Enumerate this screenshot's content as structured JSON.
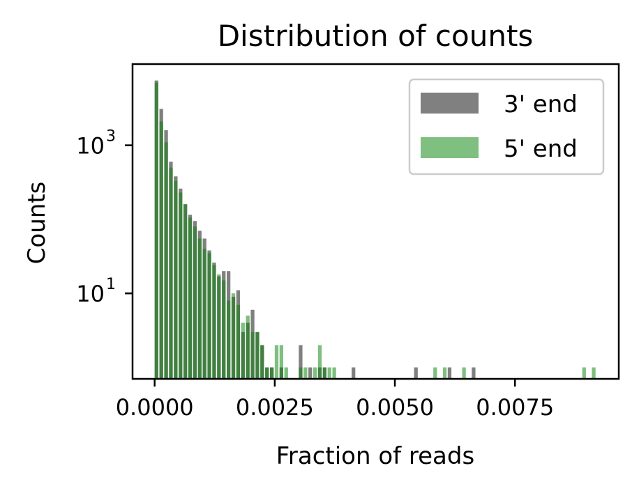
{
  "chart_data": {
    "type": "bar",
    "title": "Distribution of counts",
    "xlabel": "Fraction of reads",
    "ylabel": "Counts",
    "x_ticks": [
      {
        "value": 0.0,
        "label": "0.0000"
      },
      {
        "value": 0.0025,
        "label": "0.0025"
      },
      {
        "value": 0.005,
        "label": "0.0050"
      },
      {
        "value": 0.0075,
        "label": "0.0075"
      }
    ],
    "y_ticks": [
      {
        "value": 10,
        "base": "10",
        "exp": "1"
      },
      {
        "value": 1000,
        "base": "10",
        "exp": "3"
      }
    ],
    "xlim": [
      -0.00046,
      0.00966
    ],
    "ylim": [
      0.7,
      12500
    ],
    "y_scale": "log",
    "grid": false,
    "legend_position": "top-right",
    "bin_width": 7.64e-05,
    "series": [
      {
        "name": "3' end",
        "color": "#808080",
        "opacity": 1.0,
        "bins": [
          [
            0.0,
            7500
          ],
          [
            0.0001,
            3100
          ],
          [
            0.0002,
            1600
          ],
          [
            0.0003,
            600
          ],
          [
            0.0004,
            380
          ],
          [
            0.0005,
            260
          ],
          [
            0.0006,
            160
          ],
          [
            0.0007,
            115
          ],
          [
            0.0008,
            95
          ],
          [
            0.0009,
            70
          ],
          [
            0.001,
            55
          ],
          [
            0.0011,
            38
          ],
          [
            0.0012,
            26
          ],
          [
            0.0013,
            17
          ],
          [
            0.0014,
            20
          ],
          [
            0.0015,
            20
          ],
          [
            0.0016,
            9
          ],
          [
            0.0017,
            11
          ],
          [
            0.0018,
            3
          ],
          [
            0.0019,
            4
          ],
          [
            0.002,
            6
          ],
          [
            0.0021,
            3
          ],
          [
            0.0022,
            2
          ],
          [
            0.0023,
            1
          ],
          [
            0.0024,
            1
          ],
          [
            0.0026,
            1
          ],
          [
            0.003,
            2
          ],
          [
            0.0032,
            1
          ],
          [
            0.0034,
            1
          ],
          [
            0.0035,
            1
          ],
          [
            0.0041,
            1
          ],
          [
            0.0054,
            1
          ],
          [
            0.0061,
            1
          ],
          [
            0.0066,
            1
          ]
        ]
      },
      {
        "name": "5' end",
        "color": "#008000",
        "opacity": 0.5,
        "bins": [
          [
            0.0,
            7000
          ],
          [
            0.0001,
            2100
          ],
          [
            0.0002,
            1100
          ],
          [
            0.0003,
            500
          ],
          [
            0.0004,
            330
          ],
          [
            0.0005,
            230
          ],
          [
            0.0006,
            160
          ],
          [
            0.0007,
            105
          ],
          [
            0.0008,
            80
          ],
          [
            0.0009,
            55
          ],
          [
            0.001,
            40
          ],
          [
            0.0011,
            35
          ],
          [
            0.0012,
            24
          ],
          [
            0.0013,
            18
          ],
          [
            0.0014,
            15
          ],
          [
            0.0015,
            8
          ],
          [
            0.0016,
            10
          ],
          [
            0.0017,
            7
          ],
          [
            0.0018,
            4
          ],
          [
            0.0019,
            5
          ],
          [
            0.002,
            3
          ],
          [
            0.0021,
            3
          ],
          [
            0.0022,
            2
          ],
          [
            0.0023,
            1
          ],
          [
            0.0024,
            1
          ],
          [
            0.0025,
            2
          ],
          [
            0.0026,
            2
          ],
          [
            0.0027,
            1
          ],
          [
            0.003,
            1
          ],
          [
            0.0031,
            1
          ],
          [
            0.0033,
            1
          ],
          [
            0.0034,
            2
          ],
          [
            0.0035,
            1
          ],
          [
            0.0036,
            1
          ],
          [
            0.0037,
            1
          ],
          [
            0.0058,
            1
          ],
          [
            0.006,
            1
          ],
          [
            0.0064,
            1
          ],
          [
            0.0089,
            1
          ],
          [
            0.0091,
            1
          ]
        ]
      }
    ]
  }
}
